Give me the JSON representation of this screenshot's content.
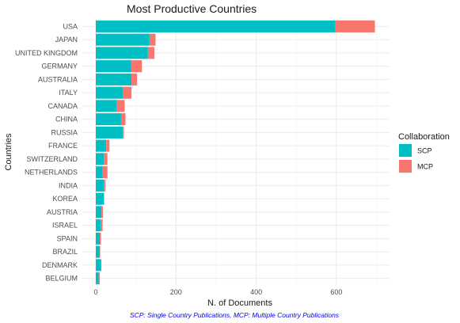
{
  "chart_data": {
    "type": "bar",
    "orientation": "horizontal",
    "stacked": true,
    "title": "Most Productive Countries",
    "xlabel": "N. of Documents",
    "ylabel": "Countries",
    "caption": "SCP: Single Country Publications, MCP: Multiple Country Publications",
    "xlim": [
      0,
      720
    ],
    "xticks": [
      0,
      200,
      400,
      600
    ],
    "grid": true,
    "legend": {
      "title": "Collaboration",
      "position": "right"
    },
    "categories": [
      "USA",
      "JAPAN",
      "UNITED KINGDOM",
      "GERMANY",
      "AUSTRALIA",
      "ITALY",
      "CANADA",
      "CHINA",
      "RUSSIA",
      "FRANCE",
      "SWITZERLAND",
      "NETHERLANDS",
      "INDIA",
      "KOREA",
      "AUSTRIA",
      "ISRAEL",
      "SPAIN",
      "BRAZIL",
      "DENMARK",
      "BELGIUM"
    ],
    "series": [
      {
        "name": "SCP",
        "color": "#00BFC4",
        "values": [
          597,
          134,
          130,
          88,
          89,
          67,
          52,
          63,
          67,
          26,
          20,
          17,
          20,
          20,
          14,
          12,
          10,
          10,
          13,
          7
        ]
      },
      {
        "name": "MCP",
        "color": "#F8766D",
        "values": [
          99,
          15,
          16,
          27,
          14,
          22,
          20,
          11,
          3,
          8,
          9,
          12,
          4,
          1,
          4,
          5,
          3,
          1,
          1,
          3
        ]
      }
    ]
  }
}
